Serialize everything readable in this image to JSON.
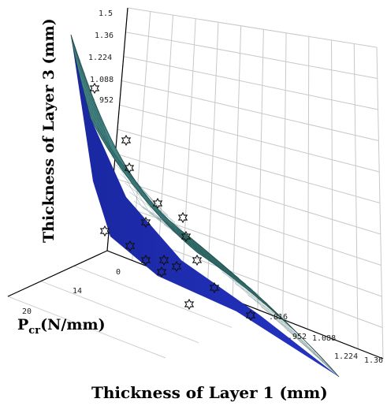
{
  "chart_data": {
    "type": "surface",
    "ylabel": "Thickness of  Layer 3 (mm)",
    "xlabel": "Thickness of  Layer 1 (mm)",
    "plabel": {
      "main": "P",
      "sub": "cr",
      "rest": "(N/mm)"
    },
    "z_ticks": [
      "1.5",
      "1.36",
      "1.224",
      "1.088",
      "952"
    ],
    "x_ticks": [
      ".816",
      ".952",
      "1.088",
      "1.224",
      "1.36"
    ],
    "p_ticks": [
      "0",
      "14",
      "20"
    ],
    "surface_points": [
      {
        "layer1": 0.68,
        "layer3": 1.5
      },
      {
        "layer1": 0.75,
        "layer3": 1.24
      },
      {
        "layer1": 0.82,
        "layer3": 1.05
      },
      {
        "layer1": 0.9,
        "layer3": 0.9
      },
      {
        "layer1": 1.0,
        "layer3": 0.78
      },
      {
        "layer1": 1.1,
        "layer3": 0.7
      },
      {
        "layer1": 1.22,
        "layer3": 0.64
      },
      {
        "layer1": 1.36,
        "layer3": 0.6
      }
    ],
    "colors": {
      "surface": "#3e7f7f",
      "surface_dark": "#1f2fa8",
      "grid": "#c8c8c8",
      "mesh": "#1c4a4a"
    }
  }
}
